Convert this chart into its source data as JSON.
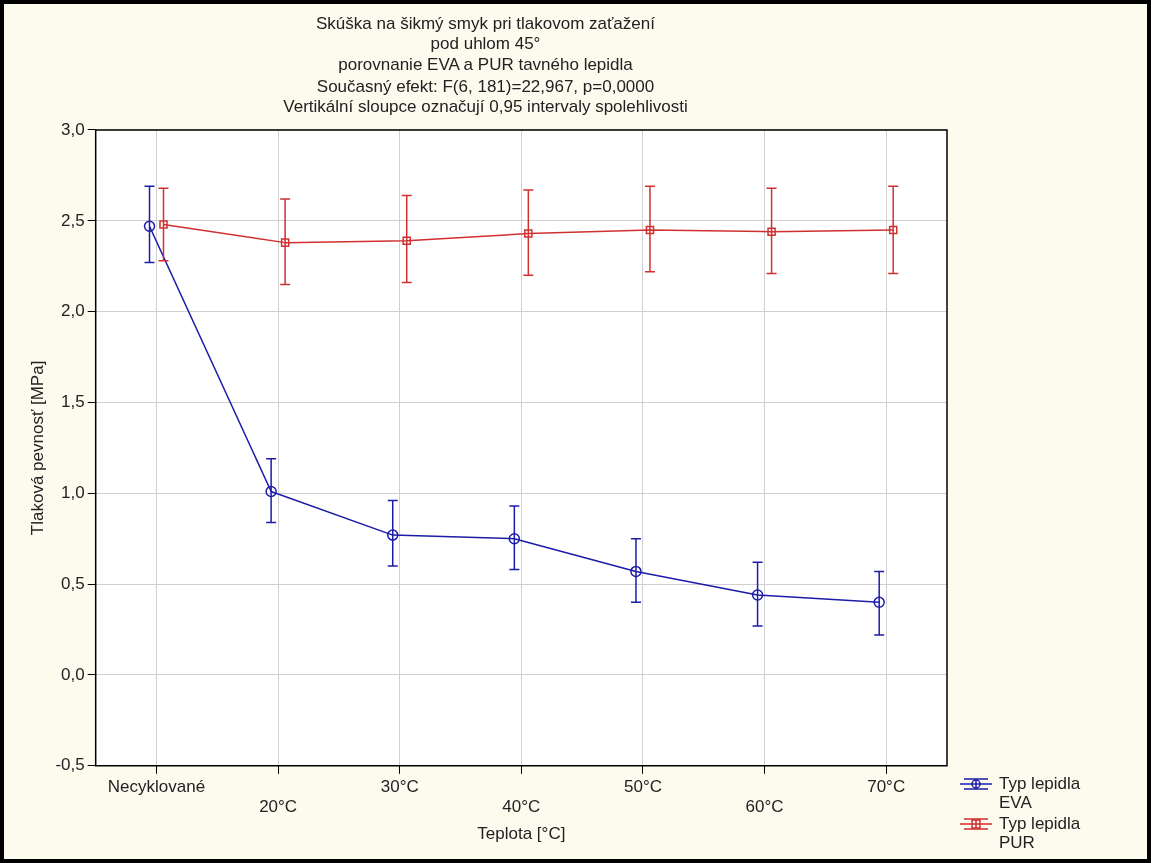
{
  "chart_data": {
    "type": "line",
    "title": "Skúška na šikmý smyk pri tlakovom zaťažení\npod uhlom 45°\nporovnanie EVA a PUR tavného lepidla",
    "annotations": [
      "Současný efekt: F(6, 181)=22,967, p=0,0000",
      "Vertikální sloupce označují 0,95 intervaly spolehlivosti"
    ],
    "xlabel": "Teplota [°C]",
    "ylabel": "Tlaková pevnosť [MPa]",
    "categories": [
      "Necyklované",
      "20°C",
      "30°C",
      "40°C",
      "50°C",
      "60°C",
      "70°C"
    ],
    "series": [
      {
        "name": "Typ lepidla EVA",
        "color": "#1c1ca8",
        "marker": "circle",
        "values": [
          2.47,
          1.01,
          0.77,
          0.75,
          0.57,
          0.44,
          0.4
        ],
        "errors": [
          [
            2.27,
            2.69
          ],
          [
            0.84,
            1.19
          ],
          [
            0.6,
            0.96
          ],
          [
            0.58,
            0.93
          ],
          [
            0.4,
            0.75
          ],
          [
            0.27,
            0.62
          ],
          [
            0.22,
            0.57
          ]
        ]
      },
      {
        "name": "Typ lepidla PUR",
        "color": "#d03030",
        "marker": "square",
        "values": [
          2.48,
          2.38,
          2.39,
          2.43,
          2.45,
          2.44,
          2.45
        ],
        "errors": [
          [
            2.28,
            2.68
          ],
          [
            2.15,
            2.62
          ],
          [
            2.16,
            2.64
          ],
          [
            2.2,
            2.67
          ],
          [
            2.22,
            2.69
          ],
          [
            2.21,
            2.68
          ],
          [
            2.21,
            2.69
          ]
        ]
      }
    ],
    "ylim": [
      -0.5,
      3.0
    ],
    "yticks": [
      {
        "value": -0.5,
        "label": "-0,5"
      },
      {
        "value": 0,
        "label": "0,0"
      },
      {
        "value": 0.5,
        "label": "0,5"
      },
      {
        "value": 1,
        "label": "1,0"
      },
      {
        "value": 1.5,
        "label": "1,5"
      },
      {
        "value": 2,
        "label": "2,0"
      },
      {
        "value": 2.5,
        "label": "2,5"
      },
      {
        "value": 3,
        "label": "3,0"
      }
    ],
    "grid": true,
    "legend": "bottom right",
    "line_style": "solid"
  }
}
